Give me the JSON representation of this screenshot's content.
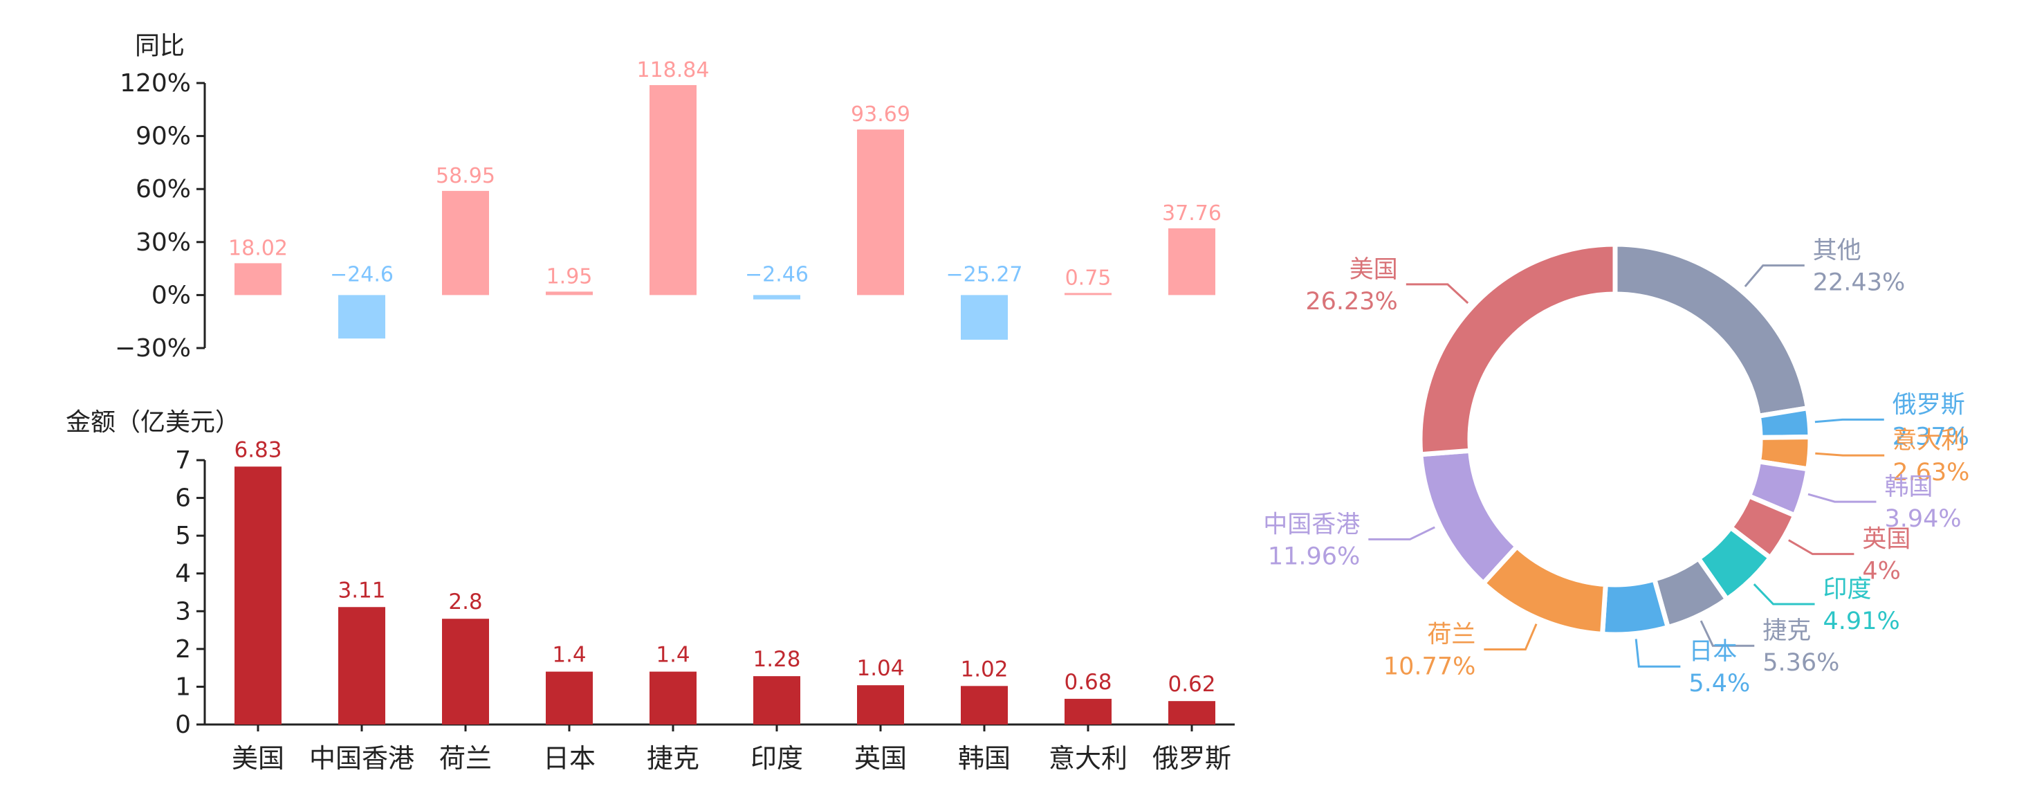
{
  "colors": {
    "yoy_positive": "#ffa4a6",
    "yoy_negative": "#97d2ff",
    "yoy_positive_text": "#ff9c9c",
    "yoy_negative_text": "#7ec4ff",
    "amount_bar": "#c0282f",
    "amount_text": "#c0282f"
  },
  "chart_data": [
    {
      "type": "bar",
      "ylabel": "同比",
      "categories": [
        "美国",
        "中国香港",
        "荷兰",
        "日本",
        "捷克",
        "印度",
        "英国",
        "韩国",
        "意大利",
        "俄罗斯"
      ],
      "values": [
        18.02,
        -24.6,
        58.95,
        1.95,
        118.84,
        -2.46,
        93.69,
        -25.27,
        0.75,
        37.76
      ],
      "data_labels": [
        "18.02",
        "−24.6",
        "58.95",
        "1.95",
        "118.84",
        "−2.46",
        "93.69",
        "−25.27",
        "0.75",
        "37.76"
      ],
      "ylim": [
        -30,
        120
      ],
      "yticks": [
        120,
        90,
        60,
        30,
        0,
        -30
      ],
      "ytick_labels": [
        "120%",
        "90%",
        "60%",
        "30%",
        "0%",
        "−30%"
      ]
    },
    {
      "type": "bar",
      "ylabel": "金额（亿美元）",
      "categories": [
        "美国",
        "中国香港",
        "荷兰",
        "日本",
        "捷克",
        "印度",
        "英国",
        "韩国",
        "意大利",
        "俄罗斯"
      ],
      "values": [
        6.83,
        3.11,
        2.8,
        1.4,
        1.4,
        1.28,
        1.04,
        1.02,
        0.68,
        0.62
      ],
      "data_labels": [
        "6.83",
        "3.11",
        "2.8",
        "1.4",
        "1.4",
        "1.28",
        "1.04",
        "1.02",
        "0.68",
        "0.62"
      ],
      "ylim": [
        0,
        7
      ],
      "yticks": [
        7,
        6,
        5,
        4,
        3,
        2,
        1,
        0
      ],
      "ytick_labels": [
        "7",
        "6",
        "5",
        "4",
        "3",
        "2",
        "1",
        "0"
      ]
    },
    {
      "type": "pie",
      "donut": true,
      "slices": [
        {
          "name": "其他",
          "value": 22.43,
          "percent_label": "22.43%",
          "color": "#8f99b3"
        },
        {
          "name": "俄罗斯",
          "value": 2.37,
          "percent_label": "2.37%",
          "color": "#55aeea"
        },
        {
          "name": "意大利",
          "value": 2.63,
          "percent_label": "2.63%",
          "color": "#f39a4c"
        },
        {
          "name": "韩国",
          "value": 3.94,
          "percent_label": "3.94%",
          "color": "#b29fe0"
        },
        {
          "name": "英国",
          "value": 4,
          "percent_label": "4%",
          "color": "#d97378"
        },
        {
          "name": "印度",
          "value": 4.91,
          "percent_label": "4.91%",
          "color": "#2cc5c7"
        },
        {
          "name": "捷克",
          "value": 5.36,
          "percent_label": "5.36%",
          "color": "#8f99b3"
        },
        {
          "name": "日本",
          "value": 5.4,
          "percent_label": "5.4%",
          "color": "#55aeea"
        },
        {
          "name": "荷兰",
          "value": 10.77,
          "percent_label": "10.77%",
          "color": "#f39a4c"
        },
        {
          "name": "中国香港",
          "value": 11.96,
          "percent_label": "11.96%",
          "color": "#b29fe0"
        },
        {
          "name": "美国",
          "value": 26.23,
          "percent_label": "26.23%",
          "color": "#d97378"
        }
      ]
    }
  ]
}
